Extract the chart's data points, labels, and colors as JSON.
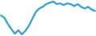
{
  "values": [
    3.5,
    2.8,
    1.0,
    -0.5,
    -1.8,
    -0.8,
    -2.0,
    -1.0,
    0.5,
    2.5,
    4.5,
    5.5,
    6.0,
    6.8,
    7.2,
    7.5,
    6.8,
    7.0,
    6.5,
    7.0,
    6.8,
    6.2,
    6.8,
    6.0,
    5.5,
    6.0,
    5.2,
    4.8
  ],
  "line_color": "#2196c8",
  "line_width": 1.5,
  "background_color": "#ffffff"
}
